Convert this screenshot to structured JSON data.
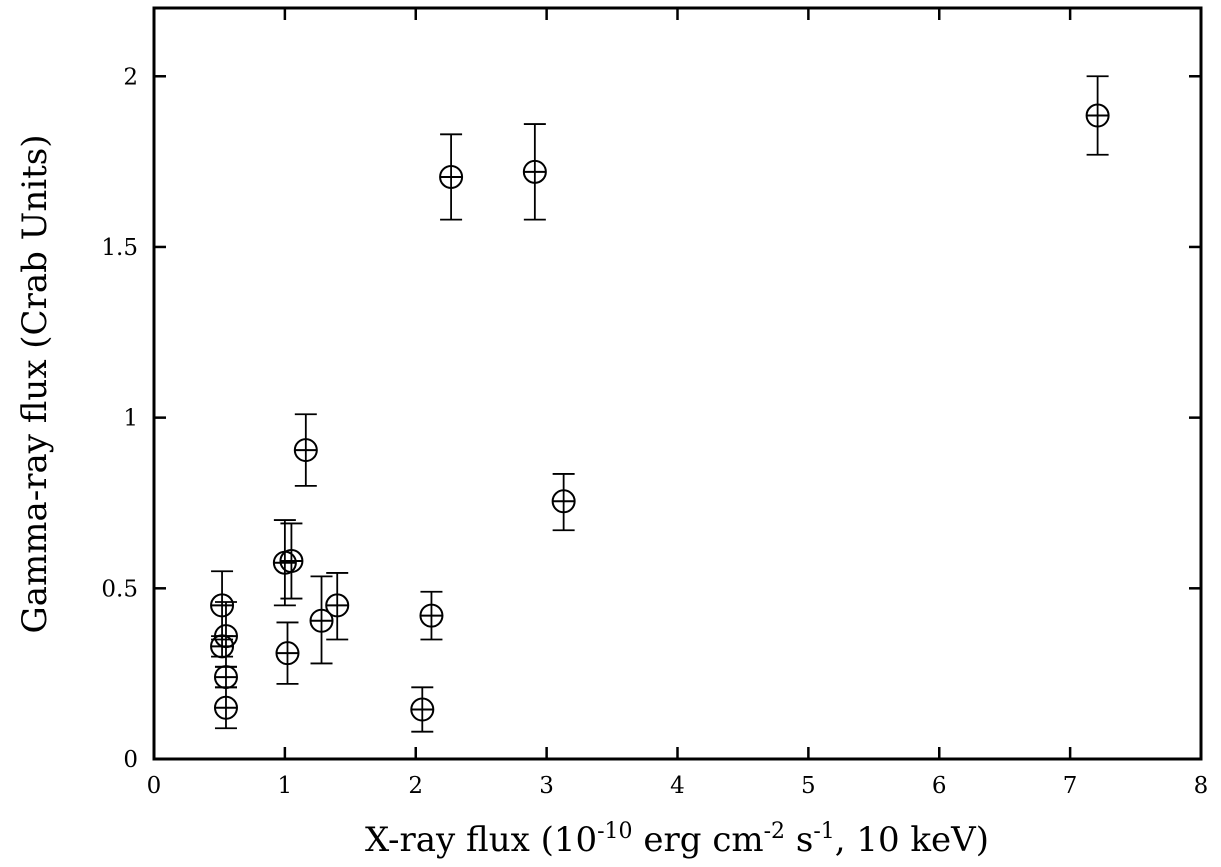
{
  "chart_data": {
    "type": "scatter",
    "xlabel": {
      "prefix": "X-ray flux (10",
      "exp1": "-10",
      "mid1": " erg cm",
      "exp2": "-2",
      "mid2": " s",
      "exp3": "-1",
      "suffix": ", 10 keV)"
    },
    "ylabel": "Gamma-ray flux (Crab Units)",
    "xlim": [
      0,
      8
    ],
    "ylim": [
      0,
      2.2
    ],
    "x_ticks": [
      0,
      1,
      2,
      3,
      4,
      5,
      6,
      7,
      8
    ],
    "x_tick_labels": [
      "0",
      "1",
      "2",
      "3",
      "4",
      "5",
      "6",
      "7",
      "8"
    ],
    "y_ticks": [
      0,
      0.5,
      1,
      1.5,
      2
    ],
    "y_tick_labels": [
      "0",
      "0.5",
      "1",
      "1.5",
      "2"
    ],
    "grid": false,
    "marker": "circle-plus",
    "points": [
      {
        "x": 0.52,
        "y": 0.45,
        "err_low": 0.35,
        "err_high": 0.55
      },
      {
        "x": 0.52,
        "y": 0.33,
        "err_low": 0.3,
        "err_high": 0.36
      },
      {
        "x": 0.55,
        "y": 0.36,
        "err_low": 0.27,
        "err_high": 0.46
      },
      {
        "x": 0.55,
        "y": 0.24,
        "err_low": 0.21,
        "err_high": 0.27
      },
      {
        "x": 0.55,
        "y": 0.15,
        "err_low": 0.09,
        "err_high": 0.21
      },
      {
        "x": 1.0,
        "y": 0.575,
        "err_low": 0.45,
        "err_high": 0.7
      },
      {
        "x": 1.05,
        "y": 0.58,
        "err_low": 0.47,
        "err_high": 0.69
      },
      {
        "x": 1.02,
        "y": 0.31,
        "err_low": 0.22,
        "err_high": 0.4
      },
      {
        "x": 1.16,
        "y": 0.905,
        "err_low": 0.8,
        "err_high": 1.01
      },
      {
        "x": 1.28,
        "y": 0.405,
        "err_low": 0.28,
        "err_high": 0.535
      },
      {
        "x": 1.4,
        "y": 0.45,
        "err_low": 0.35,
        "err_high": 0.545
      },
      {
        "x": 2.05,
        "y": 0.145,
        "err_low": 0.08,
        "err_high": 0.21
      },
      {
        "x": 2.12,
        "y": 0.42,
        "err_low": 0.35,
        "err_high": 0.49
      },
      {
        "x": 2.27,
        "y": 1.705,
        "err_low": 1.58,
        "err_high": 1.83
      },
      {
        "x": 2.91,
        "y": 1.72,
        "err_low": 1.58,
        "err_high": 1.86
      },
      {
        "x": 3.13,
        "y": 0.755,
        "err_low": 0.67,
        "err_high": 0.835
      },
      {
        "x": 7.21,
        "y": 1.885,
        "err_low": 1.77,
        "err_high": 2.0
      }
    ]
  }
}
